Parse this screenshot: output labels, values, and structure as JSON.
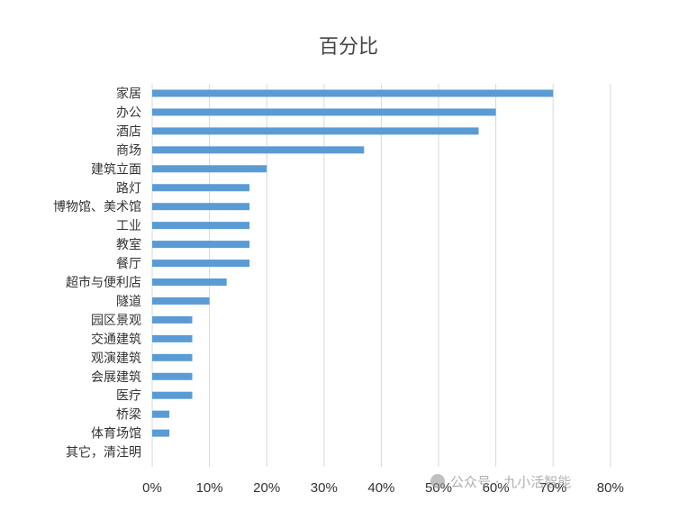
{
  "chart_data": {
    "type": "bar",
    "orientation": "horizontal",
    "title": "百分比",
    "categories": [
      "家居",
      "办公",
      "酒店",
      "商场",
      "建筑立面",
      "路灯",
      "博物馆、美术馆",
      "工业",
      "教室",
      "餐厅",
      "超市与便利店",
      "隧道",
      "园区景观",
      "交通建筑",
      "观演建筑",
      "会展建筑",
      "医疗",
      "桥梁",
      "体育场馆",
      "其它，清注明"
    ],
    "values": [
      70,
      60,
      57,
      37,
      20,
      17,
      17,
      17,
      17,
      17,
      13,
      10,
      7,
      7,
      7,
      7,
      7,
      3,
      3,
      0
    ],
    "x_ticks": [
      "0%",
      "10%",
      "20%",
      "30%",
      "40%",
      "50%",
      "60%",
      "70%",
      "80%"
    ],
    "xlim": [
      0,
      80
    ],
    "grid": "vertical",
    "bar_color": "#5b9bd5"
  },
  "watermark": "公众号 · 九小活智能"
}
